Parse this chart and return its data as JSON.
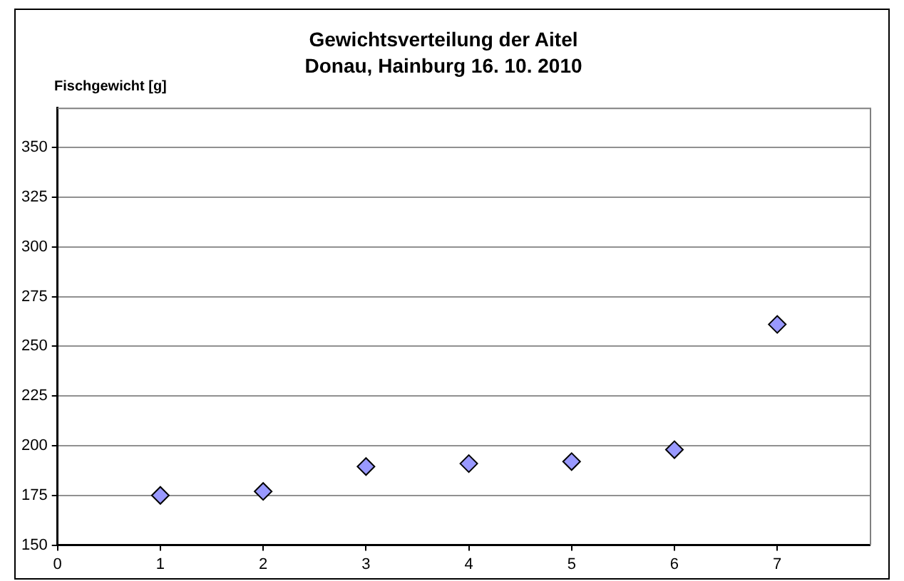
{
  "chart_data": {
    "type": "scatter",
    "title": "Gewichtsverteilung der Aitel",
    "subtitle": "Donau, Hainburg 16. 10. 2010",
    "ylabel": "Fischgewicht [g]",
    "x": [
      1,
      2,
      3,
      4,
      5,
      6,
      7
    ],
    "series": [
      {
        "color": "#9999ff",
        "values": [
          175,
          177,
          189.5,
          191,
          192,
          198,
          261
        ]
      }
    ],
    "xlim": [
      0,
      7.9
    ],
    "xticks": [
      0,
      1,
      2,
      3,
      4,
      5,
      6,
      7
    ],
    "ylim": [
      150,
      370
    ],
    "yticks": [
      150,
      175,
      200,
      225,
      250,
      275,
      300,
      325,
      350
    ],
    "grid": "y",
    "legend": false,
    "marker": "diamond"
  }
}
